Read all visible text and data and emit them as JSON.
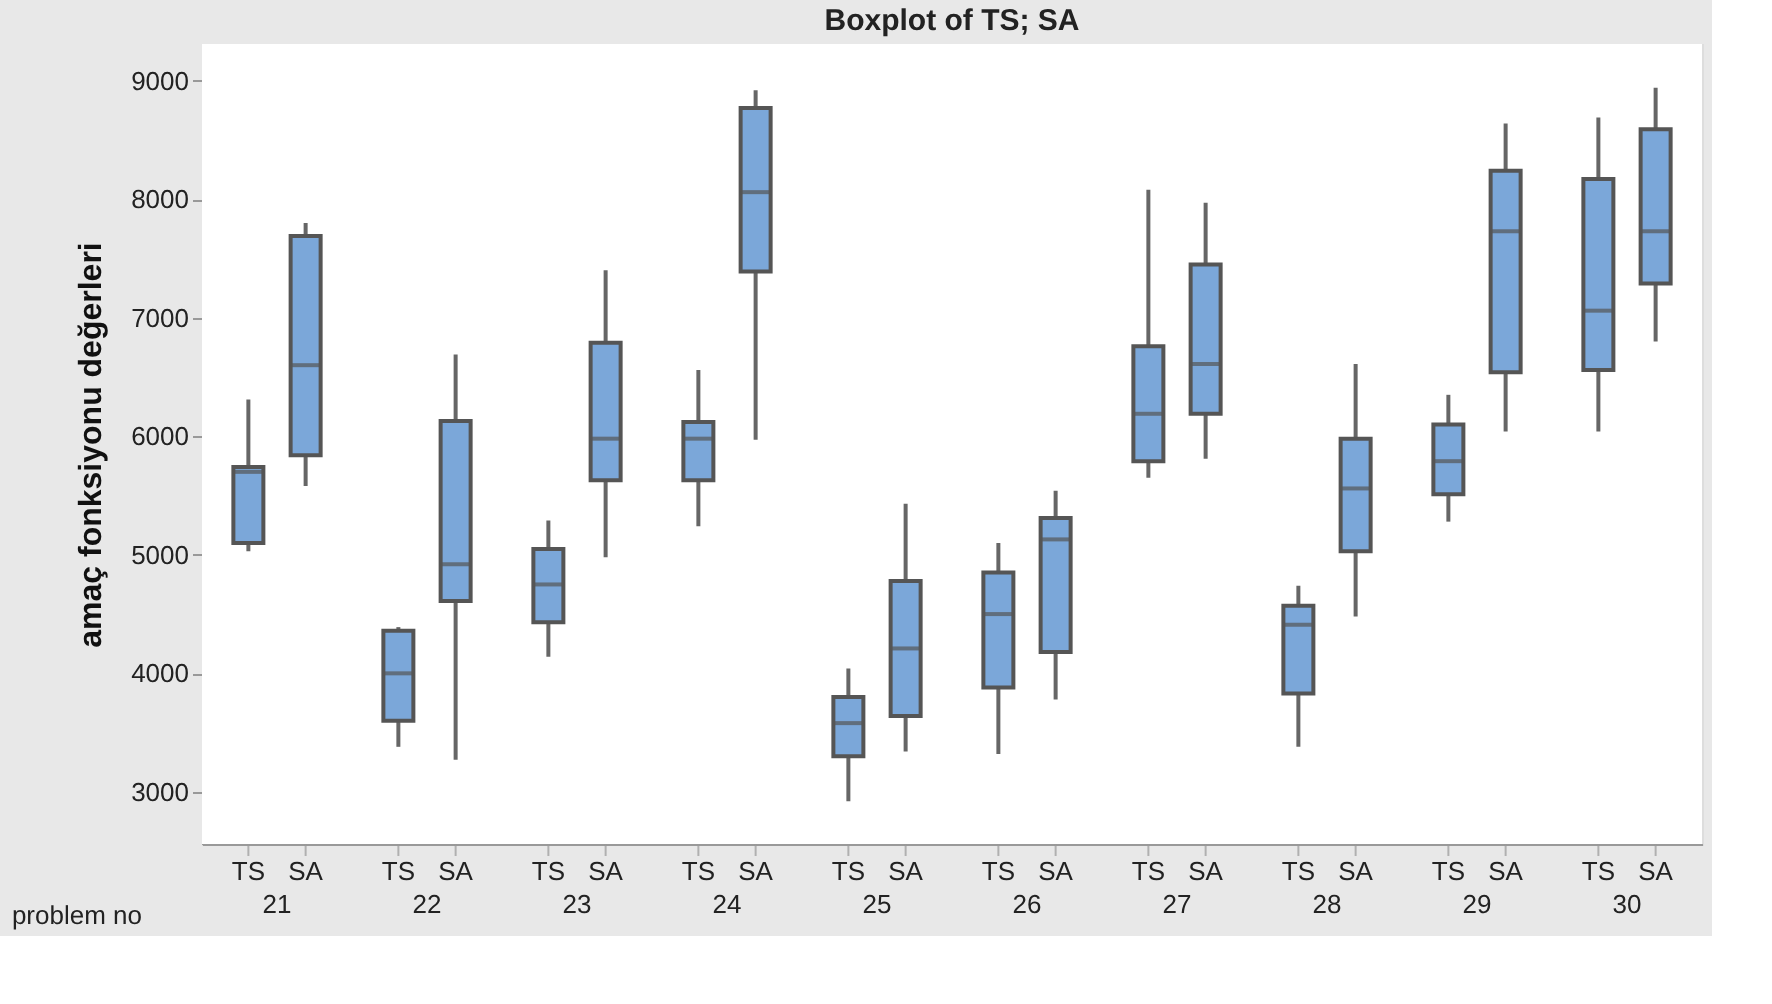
{
  "chart_data": {
    "type": "box",
    "title": "Boxplot of TS; SA",
    "xlabel": "problem no",
    "ylabel": "amaç fonksiyonu değerleri",
    "categories": [
      "TS",
      "SA",
      "TS",
      "SA",
      "TS",
      "SA",
      "TS",
      "SA",
      "TS",
      "SA",
      "TS",
      "SA",
      "TS",
      "SA",
      "TS",
      "SA",
      "TS",
      "SA",
      "TS",
      "SA"
    ],
    "annotations": [
      "21",
      "22",
      "23",
      "24",
      "25",
      "26",
      "27",
      "28",
      "29",
      "30"
    ],
    "ylim": [
      2560,
      9310
    ],
    "yticks": [
      3000,
      4000,
      5000,
      6000,
      7000,
      8000,
      9000
    ],
    "color": "#7ba7d9",
    "boxes": [
      {
        "low": 5030,
        "q1": 5100,
        "median": 5700,
        "q3": 5740,
        "high": 6310
      },
      {
        "low": 5580,
        "q1": 5840,
        "median": 6600,
        "q3": 7690,
        "high": 7800
      },
      {
        "low": 3380,
        "q1": 3600,
        "median": 4000,
        "q3": 4360,
        "high": 4390
      },
      {
        "low": 3270,
        "q1": 4610,
        "median": 4920,
        "q3": 6130,
        "high": 6690
      },
      {
        "low": 4140,
        "q1": 4430,
        "median": 4750,
        "q3": 5050,
        "high": 5290
      },
      {
        "low": 4980,
        "q1": 5630,
        "median": 5980,
        "q3": 6790,
        "high": 7400
      },
      {
        "low": 5240,
        "q1": 5630,
        "median": 5980,
        "q3": 6120,
        "high": 6560
      },
      {
        "low": 5970,
        "q1": 7390,
        "median": 8060,
        "q3": 8770,
        "high": 8920
      },
      {
        "low": 2920,
        "q1": 3300,
        "median": 3580,
        "q3": 3800,
        "high": 4040
      },
      {
        "low": 3340,
        "q1": 3640,
        "median": 4210,
        "q3": 4780,
        "high": 5430
      },
      {
        "low": 3320,
        "q1": 3880,
        "median": 4500,
        "q3": 4850,
        "high": 5100
      },
      {
        "low": 3780,
        "q1": 4180,
        "median": 5130,
        "q3": 5310,
        "high": 5540
      },
      {
        "low": 5650,
        "q1": 5790,
        "median": 6190,
        "q3": 6760,
        "high": 8080
      },
      {
        "low": 5810,
        "q1": 6190,
        "median": 6610,
        "q3": 7450,
        "high": 7970
      },
      {
        "low": 3380,
        "q1": 3830,
        "median": 4410,
        "q3": 4570,
        "high": 4740
      },
      {
        "low": 4480,
        "q1": 5030,
        "median": 5560,
        "q3": 5980,
        "high": 6610
      },
      {
        "low": 5280,
        "q1": 5510,
        "median": 5790,
        "q3": 6100,
        "high": 6350
      },
      {
        "low": 6040,
        "q1": 6540,
        "median": 7730,
        "q3": 8240,
        "high": 8640
      },
      {
        "low": 6040,
        "q1": 6560,
        "median": 7060,
        "q3": 8170,
        "high": 8690
      },
      {
        "low": 6800,
        "q1": 7290,
        "median": 7730,
        "q3": 8590,
        "high": 8940
      }
    ]
  }
}
